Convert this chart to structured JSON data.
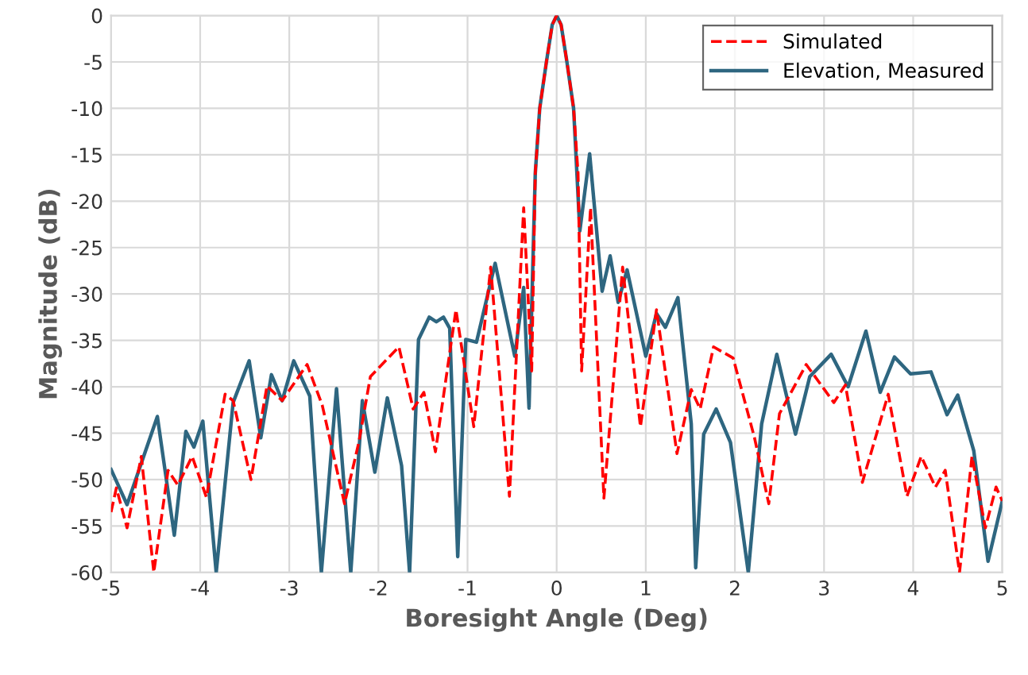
{
  "chart_data": {
    "type": "line",
    "xlabel": "Boresight Angle (Deg)",
    "ylabel": "Magnitude (dB)",
    "xlim": [
      -5,
      5
    ],
    "ylim": [
      -60,
      0
    ],
    "xticks": [
      -5,
      -4,
      -3,
      -2,
      -1,
      0,
      1,
      2,
      3,
      4,
      5
    ],
    "yticks": [
      0,
      -5,
      -10,
      -15,
      -20,
      -25,
      -30,
      -35,
      -40,
      -45,
      -50,
      -55,
      -60
    ],
    "grid": true,
    "legend": "top right",
    "series": [
      {
        "name": "Simulated",
        "color": "#ff0000",
        "line_style": "dashed",
        "x": [
          -5.0,
          -4.94,
          -4.82,
          -4.66,
          -4.52,
          -4.36,
          -4.25,
          -4.09,
          -3.93,
          -3.72,
          -3.63,
          -3.43,
          -3.25,
          -3.08,
          -2.8,
          -2.63,
          -2.38,
          -2.22,
          -2.09,
          -1.77,
          -1.61,
          -1.49,
          -1.36,
          -1.13,
          -0.93,
          -0.74,
          -0.53,
          -0.37,
          -0.28,
          -0.24,
          -0.19,
          -0.115,
          -0.05,
          0,
          0.05,
          0.115,
          0.19,
          0.24,
          0.28,
          0.38,
          0.53,
          0.74,
          0.94,
          1.12,
          1.35,
          1.51,
          1.61,
          1.76,
          1.98,
          2.22,
          2.38,
          2.5,
          2.8,
          3.11,
          3.24,
          3.43,
          3.72,
          3.93,
          4.09,
          4.25,
          4.36,
          4.52,
          4.66,
          4.81,
          4.93,
          5.0
        ],
        "values": [
          -53.5,
          -50.9,
          -55.2,
          -47.5,
          -60,
          -49,
          -50.6,
          -47.5,
          -51.9,
          -40.8,
          -41.5,
          -50,
          -39.9,
          -41.5,
          -37.6,
          -42,
          -52.6,
          -46,
          -38.9,
          -35.7,
          -42.4,
          -40.6,
          -47,
          -31.7,
          -44.3,
          -27.1,
          -51.8,
          -20.7,
          -38.3,
          -17,
          -10,
          -5,
          -1,
          0,
          -1,
          -5,
          -10,
          -17,
          -38.3,
          -20.7,
          -52,
          -27.1,
          -44.3,
          -31.7,
          -47.2,
          -40.3,
          -42.4,
          -35.7,
          -36.9,
          -45.5,
          -52.6,
          -42.9,
          -37.6,
          -41.7,
          -39.8,
          -50.3,
          -40.8,
          -51.8,
          -47.5,
          -50.8,
          -49,
          -60,
          -47.5,
          -55.2,
          -50.8,
          -52.3
        ]
      },
      {
        "name": "Elevation, Measured",
        "color": "#2e6680",
        "line_style": "solid",
        "x": [
          -5.0,
          -4.82,
          -4.48,
          -4.29,
          -4.16,
          -4.07,
          -3.97,
          -3.82,
          -3.63,
          -3.45,
          -3.32,
          -3.2,
          -3.08,
          -2.95,
          -2.77,
          -2.64,
          -2.47,
          -2.31,
          -2.18,
          -2.04,
          -1.9,
          -1.74,
          -1.65,
          -1.55,
          -1.43,
          -1.35,
          -1.27,
          -1.2,
          -1.11,
          -1.02,
          -0.9,
          -0.69,
          -0.47,
          -0.37,
          -0.31,
          -0.24,
          -0.19,
          -0.115,
          -0.05,
          0,
          0.05,
          0.115,
          0.19,
          0.26,
          0.37,
          0.51,
          0.6,
          0.69,
          0.79,
          1.0,
          1.12,
          1.22,
          1.36,
          1.51,
          1.56,
          1.65,
          1.79,
          1.95,
          2.15,
          2.3,
          2.47,
          2.68,
          2.84,
          3.08,
          3.27,
          3.47,
          3.63,
          3.79,
          3.97,
          4.2,
          4.38,
          4.5,
          4.68,
          4.84,
          5.0
        ],
        "values": [
          -48.9,
          -52.7,
          -43.2,
          -56,
          -44.8,
          -46.5,
          -43.7,
          -60,
          -41.7,
          -37.2,
          -45.5,
          -38.7,
          -41.5,
          -37.2,
          -41,
          -60,
          -40.2,
          -60,
          -41.5,
          -49.2,
          -41.2,
          -48.5,
          -60,
          -34.9,
          -32.5,
          -33,
          -32.5,
          -33.7,
          -58.3,
          -34.9,
          -35.2,
          -26.7,
          -36.7,
          -29.3,
          -42.3,
          -17,
          -10,
          -5,
          -1,
          0,
          -1,
          -5,
          -10,
          -23.2,
          -14.9,
          -29.7,
          -25.9,
          -30.9,
          -27.4,
          -36.7,
          -32.1,
          -33.6,
          -30.4,
          -44,
          -59.5,
          -45.1,
          -42.4,
          -46,
          -60,
          -44,
          -36.5,
          -45.1,
          -38.9,
          -36.5,
          -40,
          -34,
          -40.6,
          -36.8,
          -38.6,
          -38.4,
          -43,
          -40.9,
          -46.9,
          -58.8,
          -52.3
        ]
      }
    ]
  }
}
